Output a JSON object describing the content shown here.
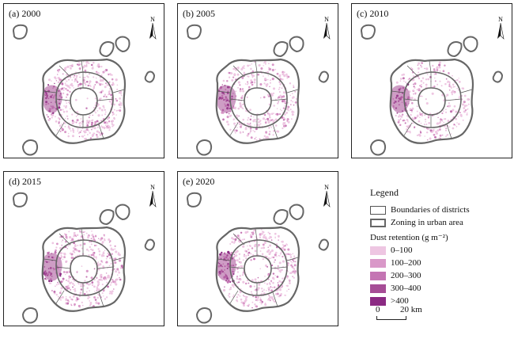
{
  "panels": [
    {
      "label": "(a) 2000",
      "north": "N",
      "spread": 1.0
    },
    {
      "label": "(b) 2005",
      "north": "N",
      "spread": 0.85
    },
    {
      "label": "(c) 2010",
      "north": "N",
      "spread": 0.8
    },
    {
      "label": "(d) 2015",
      "north": "N",
      "spread": 1.0
    },
    {
      "label": "(e) 2020",
      "north": "N",
      "spread": 1.05
    }
  ],
  "legend": {
    "title": "Legend",
    "districts_label": "Boundaries of districts",
    "zoning_label": "Zoning in urban area",
    "dust_title": "Dust retention (g m⁻²)",
    "classes": [
      {
        "label": "0–100",
        "color": "#eec6e2"
      },
      {
        "label": "100–200",
        "color": "#d998c8"
      },
      {
        "label": "200–300",
        "color": "#c475b3"
      },
      {
        "label": "300–400",
        "color": "#a64d96"
      },
      {
        "label": ">400",
        "color": "#8b2a83"
      }
    ]
  },
  "scale": {
    "zero": "0",
    "distance": "20 km"
  }
}
